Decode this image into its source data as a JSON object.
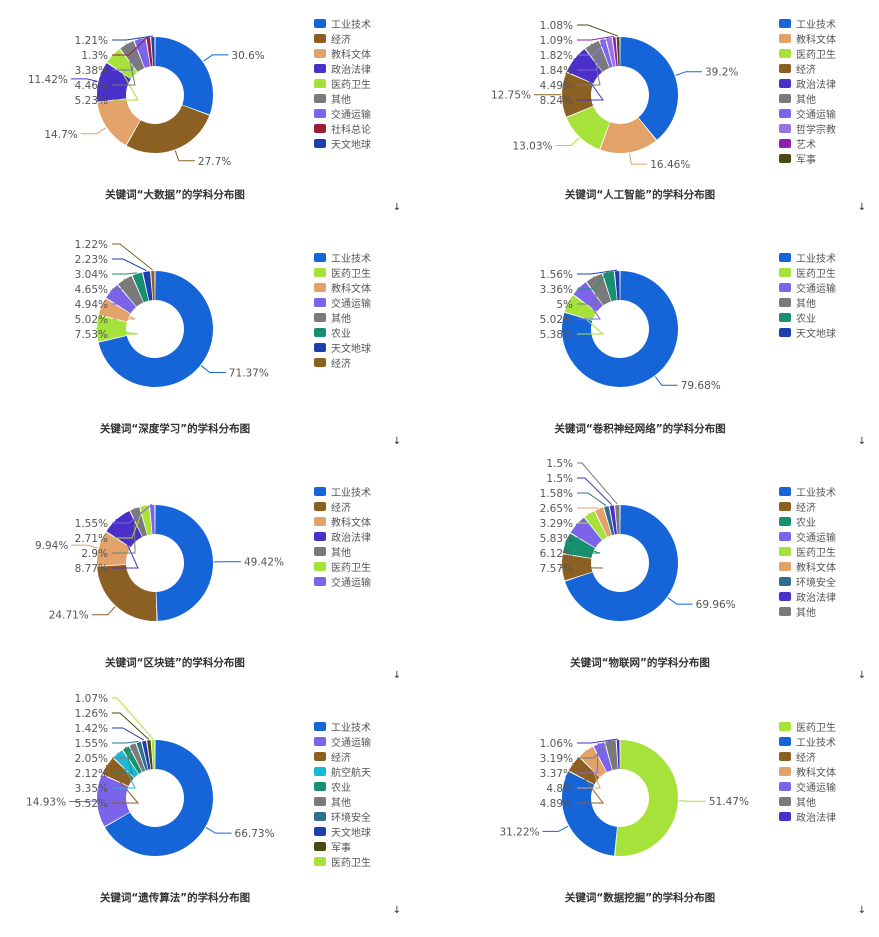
{
  "colors": {
    "工业技术": "#1565d8",
    "经济": "#8c6023",
    "教科文体": "#e3a26a",
    "政治法律": "#4a2fc8",
    "医药卫生": "#a6e23a",
    "其他": "#7a7a7a",
    "交通运输": "#7b63ea",
    "社科总论": "#9e1b3a",
    "天文地球": "#1e3fb0",
    "哲学宗教": "#9a75e0",
    "艺术": "#8e1fb0",
    "军事": "#4b4a12",
    "农业": "#189070",
    "环境安全": "#2e6f8f",
    "航空航天": "#1cb8d8"
  },
  "download_icon": "download-arrow-icon",
  "chart_data": [
    {
      "type": "pie",
      "title": "关键词“大数据”的学科分布图",
      "categories": [
        "工业技术",
        "经济",
        "教科文体",
        "政治法律",
        "医药卫生",
        "其他",
        "交通运输",
        "社科总论",
        "天文地球"
      ],
      "values": [
        30.6,
        27.7,
        14.7,
        11.42,
        5.23,
        4.46,
        3.38,
        1.3,
        1.21
      ],
      "value_labels": [
        "30.6%",
        "27.7%",
        "14.7%",
        "11.42%",
        "5.23%",
        "4.46%",
        "3.38%",
        "1.3%",
        "1.21%"
      ],
      "legend": [
        "工业技术",
        "经济",
        "教科文体",
        "政治法律",
        "医药卫生",
        "其他",
        "交通运输",
        "社科总论",
        "天文地球"
      ]
    },
    {
      "type": "pie",
      "title": "关键词“人工智能”的学科分布图",
      "categories": [
        "工业技术",
        "教科文体",
        "医药卫生",
        "经济",
        "政治法律",
        "其他",
        "交通运输",
        "哲学宗教",
        "艺术",
        "军事"
      ],
      "values": [
        39.2,
        16.46,
        13.03,
        12.75,
        8.24,
        4.49,
        1.84,
        1.82,
        1.09,
        1.08
      ],
      "value_labels": [
        "39.2%",
        "16.46%",
        "13.03%",
        "12.75%",
        "8.24%",
        "4.49%",
        "1.84%",
        "1.82%",
        "1.09%",
        "1.08%"
      ],
      "legend": [
        "工业技术",
        "教科文体",
        "医药卫生",
        "经济",
        "政治法律",
        "其他",
        "交通运输",
        "哲学宗教",
        "艺术",
        "军事"
      ]
    },
    {
      "type": "pie",
      "title": "关键词“深度学习”的学科分布图",
      "categories": [
        "工业技术",
        "医药卫生",
        "教科文体",
        "交通运输",
        "其他",
        "农业",
        "天文地球",
        "经济"
      ],
      "values": [
        71.37,
        7.53,
        5.02,
        4.94,
        4.65,
        3.04,
        2.23,
        1.22
      ],
      "value_labels": [
        "71.37%",
        "7.53%",
        "5.02%",
        "4.94%",
        "4.65%",
        "3.04%",
        "2.23%",
        "1.22%"
      ],
      "legend": [
        "工业技术",
        "医药卫生",
        "教科文体",
        "交通运输",
        "其他",
        "农业",
        "天文地球",
        "经济"
      ]
    },
    {
      "type": "pie",
      "title": "关键词“卷积神经网络”的学科分布图",
      "categories": [
        "工业技术",
        "医药卫生",
        "交通运输",
        "其他",
        "农业",
        "天文地球"
      ],
      "values": [
        79.68,
        5.38,
        5.02,
        5,
        3.36,
        1.56
      ],
      "value_labels": [
        "79.68%",
        "5.38%",
        "5.02%",
        "5%",
        "3.36%",
        "1.56%"
      ],
      "legend": [
        "工业技术",
        "医药卫生",
        "交通运输",
        "其他",
        "农业",
        "天文地球"
      ]
    },
    {
      "type": "pie",
      "title": "关键词“区块链”的学科分布图",
      "categories": [
        "工业技术",
        "经济",
        "教科文体",
        "政治法律",
        "其他",
        "医药卫生",
        "交通运输"
      ],
      "values": [
        49.42,
        24.71,
        9.94,
        8.77,
        2.9,
        2.71,
        1.55
      ],
      "value_labels": [
        "49.42%",
        "24.71%",
        "9.94%",
        "8.77%",
        "2.9%",
        "2.71%",
        "1.55%"
      ],
      "legend": [
        "工业技术",
        "经济",
        "教科文体",
        "政治法律",
        "其他",
        "医药卫生",
        "交通运输"
      ]
    },
    {
      "type": "pie",
      "title": "关键词“物联网”的学科分布图",
      "categories": [
        "工业技术",
        "经济",
        "农业",
        "交通运输",
        "医药卫生",
        "教科文体",
        "环境安全",
        "政治法律",
        "其他"
      ],
      "values": [
        69.96,
        7.57,
        6.12,
        5.83,
        3.29,
        2.65,
        1.58,
        1.5,
        1.5
      ],
      "value_labels": [
        "69.96%",
        "7.57%",
        "6.12%",
        "5.83%",
        "3.29%",
        "2.65%",
        "1.58%",
        "1.5%",
        "1.5%"
      ],
      "legend": [
        "工业技术",
        "经济",
        "农业",
        "交通运输",
        "医药卫生",
        "教科文体",
        "环境安全",
        "政治法律",
        "其他"
      ]
    },
    {
      "type": "pie",
      "title": "关键词“遗传算法”的学科分布图",
      "categories": [
        "工业技术",
        "交通运输",
        "经济",
        "航空航天",
        "农业",
        "其他",
        "环境安全",
        "天文地球",
        "军事",
        "医药卫生"
      ],
      "values": [
        66.73,
        14.93,
        5.52,
        3.35,
        2.12,
        2.05,
        1.55,
        1.42,
        1.26,
        1.07
      ],
      "value_labels": [
        "66.73%",
        "14.93%",
        "5.52%",
        "3.35%",
        "2.12%",
        "2.05%",
        "1.55%",
        "1.42%",
        "1.26%",
        "1.07%"
      ],
      "legend": [
        "工业技术",
        "交通运输",
        "经济",
        "航空航天",
        "农业",
        "其他",
        "环境安全",
        "天文地球",
        "军事",
        "医药卫生"
      ]
    },
    {
      "type": "pie",
      "title": "关键词“数据挖掘”的学科分布图",
      "categories": [
        "医药卫生",
        "工业技术",
        "经济",
        "教科文体",
        "交通运输",
        "其他",
        "政治法律"
      ],
      "values": [
        51.47,
        31.22,
        4.89,
        4.8,
        3.37,
        3.19,
        1.06
      ],
      "value_labels": [
        "51.47%",
        "31.22%",
        "4.89%",
        "4.8%",
        "3.37%",
        "3.19%",
        "1.06%"
      ],
      "legend": [
        "医药卫生",
        "工业技术",
        "经济",
        "教科文体",
        "交通运输",
        "其他",
        "政治法律"
      ]
    }
  ]
}
